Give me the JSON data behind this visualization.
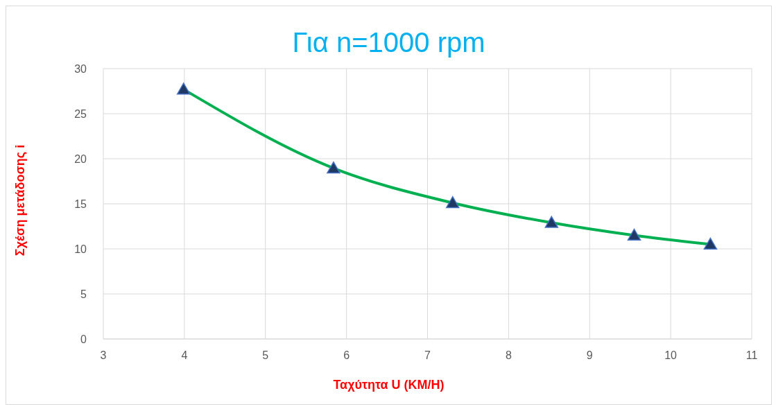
{
  "chart_data": {
    "type": "line",
    "title": "Για n=1000 rpm",
    "xlabel": "Ταχύτητα U (KM/H)",
    "ylabel": "Σχέση μετάδοσης i",
    "x": [
      3.99,
      5.84,
      7.31,
      8.53,
      9.55,
      10.49
    ],
    "series": [
      {
        "color": "#00b050",
        "values": [
          27.7,
          18.95,
          15.1,
          12.9,
          11.5,
          10.5
        ]
      }
    ],
    "xlim": [
      3,
      11
    ],
    "xticks": [
      3,
      4,
      5,
      6,
      7,
      8,
      9,
      10,
      11
    ],
    "ylim": [
      0,
      30
    ],
    "yticks": [
      0,
      5,
      10,
      15,
      20,
      25,
      30
    ],
    "grid": true,
    "marker": "triangle",
    "line_style": "solid",
    "legend": false
  }
}
